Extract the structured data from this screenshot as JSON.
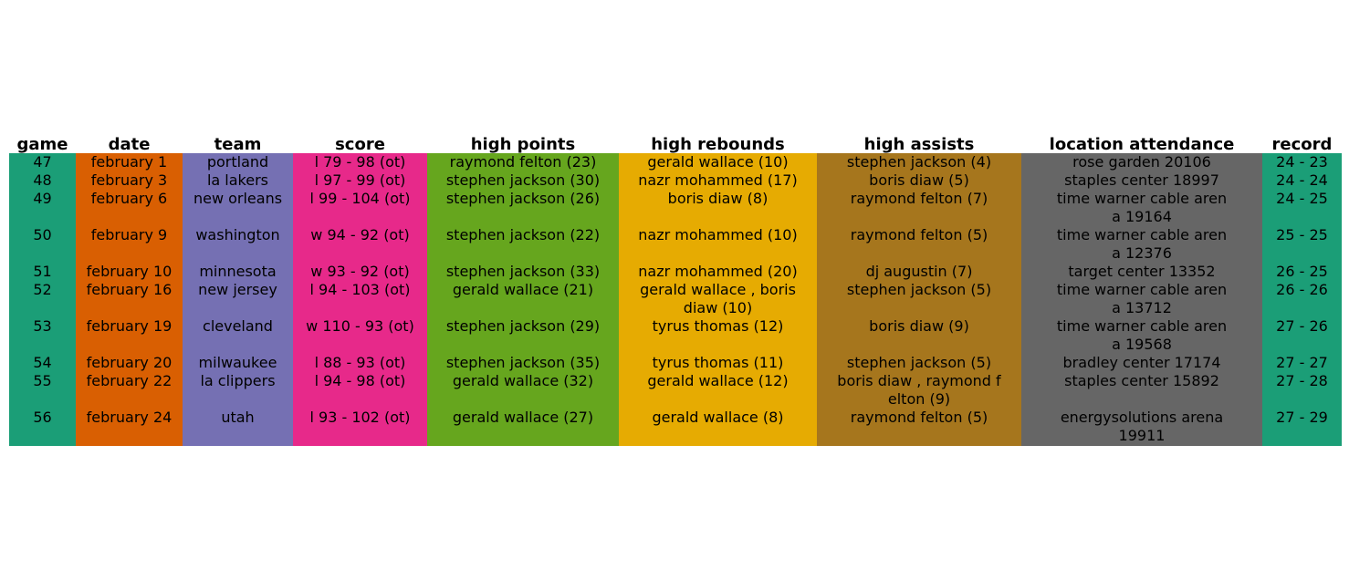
{
  "chart_data": {
    "type": "table",
    "columns": [
      "game",
      "date",
      "team",
      "score",
      "high points",
      "high rebounds",
      "high assists",
      "location attendance",
      "record"
    ],
    "column_colors": [
      "#1b9e77",
      "#d95f02",
      "#7570b3",
      "#e7298a",
      "#66a61e",
      "#e6ab02",
      "#a6761d",
      "#666666",
      "#1b9e77"
    ],
    "rows": [
      [
        [
          "47"
        ],
        [
          "february 1"
        ],
        [
          "portland"
        ],
        [
          "l 79 - 98 (ot)"
        ],
        [
          "raymond felton (23)"
        ],
        [
          "gerald wallace (10)"
        ],
        [
          "stephen jackson (4)"
        ],
        [
          "rose garden 20106"
        ],
        [
          "24 - 23"
        ]
      ],
      [
        [
          "48"
        ],
        [
          "february 3"
        ],
        [
          "la lakers"
        ],
        [
          "l 97 - 99 (ot)"
        ],
        [
          "stephen jackson (30)"
        ],
        [
          "nazr mohammed (17)"
        ],
        [
          "boris diaw (5)"
        ],
        [
          "staples center 18997"
        ],
        [
          "24 - 24"
        ]
      ],
      [
        [
          "49"
        ],
        [
          "february 6"
        ],
        [
          "new orleans"
        ],
        [
          "l 99 - 104 (ot)"
        ],
        [
          "stephen jackson (26)"
        ],
        [
          "boris diaw (8)"
        ],
        [
          "raymond felton (7)"
        ],
        [
          "time warner cable aren",
          "a 19164"
        ],
        [
          "24 - 25"
        ]
      ],
      [
        [
          "50"
        ],
        [
          "february 9"
        ],
        [
          "washington"
        ],
        [
          "w 94 - 92 (ot)"
        ],
        [
          "stephen jackson (22)"
        ],
        [
          "nazr mohammed (10)"
        ],
        [
          "raymond felton (5)"
        ],
        [
          "time warner cable aren",
          "a 12376"
        ],
        [
          "25 - 25"
        ]
      ],
      [
        [
          "51"
        ],
        [
          "february 10"
        ],
        [
          "minnesota"
        ],
        [
          "w 93 - 92 (ot)"
        ],
        [
          "stephen jackson (33)"
        ],
        [
          "nazr mohammed (20)"
        ],
        [
          "dj augustin (7)"
        ],
        [
          "target center 13352"
        ],
        [
          "26 - 25"
        ]
      ],
      [
        [
          "52"
        ],
        [
          "february 16"
        ],
        [
          "new jersey"
        ],
        [
          "l 94 - 103 (ot)"
        ],
        [
          "gerald wallace (21)"
        ],
        [
          "gerald wallace , boris",
          "diaw (10)"
        ],
        [
          "stephen jackson (5)"
        ],
        [
          "time warner cable aren",
          "a 13712"
        ],
        [
          "26 - 26"
        ]
      ],
      [
        [
          "53"
        ],
        [
          "february 19"
        ],
        [
          "cleveland"
        ],
        [
          "w 110 - 93 (ot)"
        ],
        [
          "stephen jackson (29)"
        ],
        [
          "tyrus thomas (12)"
        ],
        [
          "boris diaw (9)"
        ],
        [
          "time warner cable aren",
          "a 19568"
        ],
        [
          "27 - 26"
        ]
      ],
      [
        [
          "54"
        ],
        [
          "february 20"
        ],
        [
          "milwaukee"
        ],
        [
          "l 88 - 93 (ot)"
        ],
        [
          "stephen jackson (35)"
        ],
        [
          "tyrus thomas (11)"
        ],
        [
          "stephen jackson (5)"
        ],
        [
          "bradley center 17174"
        ],
        [
          "27 - 27"
        ]
      ],
      [
        [
          "55"
        ],
        [
          "february 22"
        ],
        [
          "la clippers"
        ],
        [
          "l 94 - 98 (ot)"
        ],
        [
          "gerald wallace (32)"
        ],
        [
          "gerald wallace (12)"
        ],
        [
          "boris diaw , raymond f",
          "elton (9)"
        ],
        [
          "staples center 15892"
        ],
        [
          "27 - 28"
        ]
      ],
      [
        [
          "56"
        ],
        [
          "february 24"
        ],
        [
          "utah"
        ],
        [
          "l 93 - 102 (ot)"
        ],
        [
          "gerald wallace (27)"
        ],
        [
          "gerald wallace (8)"
        ],
        [
          "raymond felton (5)"
        ],
        [
          "energysolutions arena",
          "19911"
        ],
        [
          "27 - 29"
        ]
      ]
    ]
  }
}
